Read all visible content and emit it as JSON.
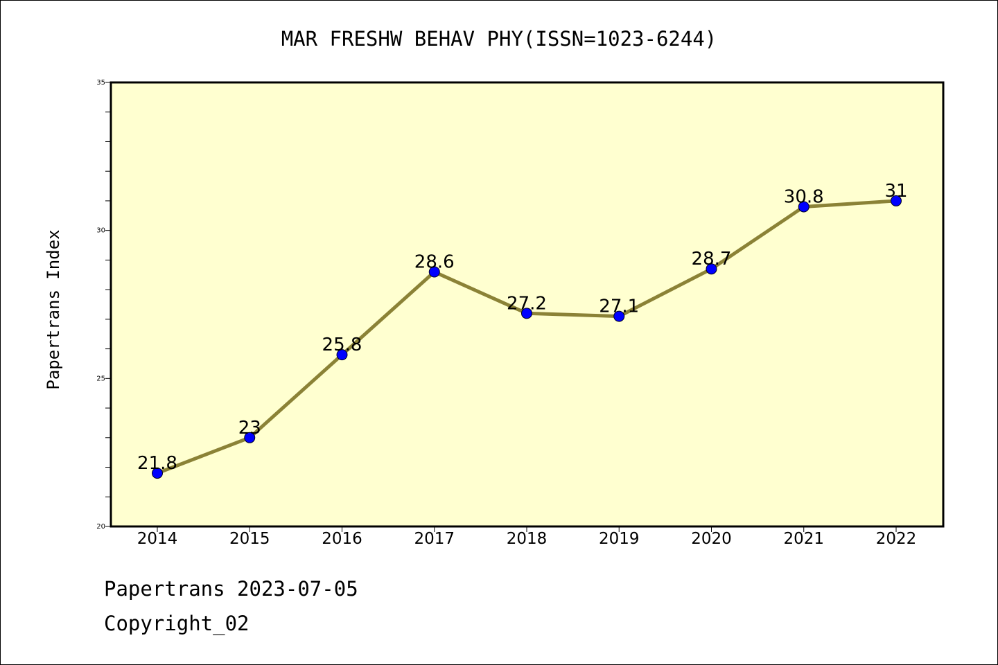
{
  "chart_data": {
    "type": "line",
    "title": "MAR FRESHW BEHAV PHY(ISSN=1023-6244)",
    "xlabel": "",
    "ylabel": "Papertrans Index",
    "categories": [
      "2014",
      "2015",
      "2016",
      "2017",
      "2018",
      "2019",
      "2020",
      "2021",
      "2022"
    ],
    "series": [
      {
        "values": [
          21.8,
          23,
          25.8,
          28.6,
          27.2,
          27.1,
          28.7,
          30.8,
          31
        ],
        "labels": [
          "21.8",
          "23",
          "25.8",
          "28.6",
          "27.2",
          "27.1",
          "28.7",
          "30.8",
          "31"
        ]
      }
    ],
    "ylim": [
      20,
      35
    ],
    "yticks": [
      "20",
      "25",
      "30",
      "35"
    ],
    "grid": false,
    "legend": "none",
    "colors": {
      "plot_background": "#ffffd0",
      "line": "#8b8236",
      "marker": "#0000ff"
    }
  },
  "footer": {
    "line1": "Papertrans 2023-07-05",
    "line2": "Copyright_02"
  }
}
